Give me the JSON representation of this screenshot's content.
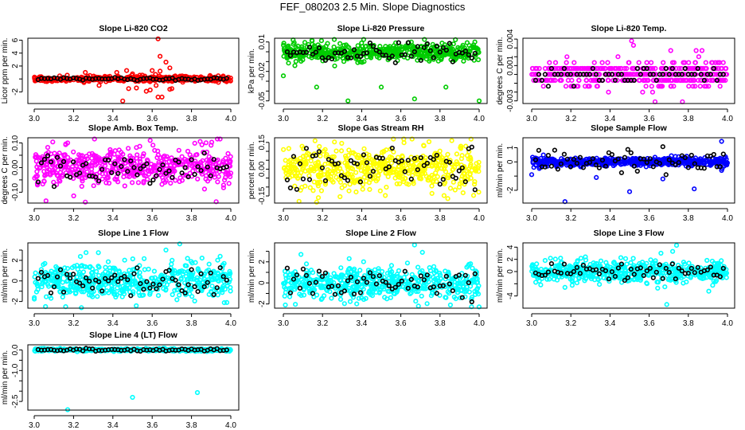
{
  "title": "FEF_080203  2.5 Min. Slope Diagnostics",
  "chart_data": [
    {
      "type": "scatter",
      "title": "Slope Li-820 CO2",
      "ylabel": "Licor ppm per min.",
      "color": "#ff0000",
      "xlim": [
        3.0,
        4.0
      ],
      "ylim": [
        -3.8,
        6.3
      ],
      "xticks": [
        3.0,
        3.2,
        3.4,
        3.6,
        3.8,
        4.0
      ],
      "yticks": [
        -2,
        0,
        2,
        4,
        6
      ],
      "ytick_labels": [
        "-2",
        "",
        "2",
        "4",
        "6"
      ],
      "bulk": {
        "n": 420,
        "center": 0,
        "sd": 0.22
      },
      "outliers": [
        [
          3.63,
          6.2
        ],
        [
          3.64,
          3.5
        ],
        [
          3.67,
          2.6
        ],
        [
          3.69,
          1.7
        ],
        [
          3.6,
          1.3
        ],
        [
          3.64,
          1.2
        ],
        [
          3.26,
          1.0
        ],
        [
          3.47,
          1.3
        ],
        [
          3.42,
          1.0
        ],
        [
          3.45,
          -3.4
        ],
        [
          3.63,
          -2.8
        ],
        [
          3.65,
          -2.8
        ],
        [
          3.57,
          -1.9
        ],
        [
          3.59,
          -1.7
        ],
        [
          3.69,
          -1.6
        ],
        [
          3.7,
          -1.5
        ],
        [
          3.48,
          -1.5
        ],
        [
          3.52,
          -1.4
        ],
        [
          3.33,
          -1.0
        ],
        [
          3.62,
          -1.0
        ],
        [
          3.55,
          0.6
        ],
        [
          3.5,
          0.8
        ]
      ],
      "reference": {
        "n": 60,
        "sd": 0.1
      }
    },
    {
      "type": "scatter",
      "title": "Slope Li-820 Pressure",
      "ylabel": "kPa per min.",
      "color": "#00cc00",
      "xlim": [
        3.0,
        4.0
      ],
      "ylim": [
        -0.0527,
        0.0138
      ],
      "xticks": [
        3.0,
        3.2,
        3.4,
        3.6,
        3.8,
        4.0
      ],
      "yticks": [
        0.01,
        0,
        -0.01,
        -0.02,
        -0.03,
        -0.04,
        -0.05
      ],
      "ytick_labels": [
        "0.01",
        "",
        "",
        "-0.02",
        "",
        "",
        "-0.05"
      ],
      "bulk": {
        "n": 520,
        "center": -0.0005,
        "sd": 0.0045
      },
      "outliers": [
        [
          3.17,
          -0.036
        ],
        [
          3.5,
          -0.036
        ],
        [
          3.83,
          -0.036
        ],
        [
          3.33,
          -0.05
        ],
        [
          3.67,
          -0.048
        ],
        [
          4.0,
          -0.05
        ],
        [
          3.0,
          -0.0245
        ],
        [
          3.26,
          0.0125
        ],
        [
          3.41,
          0.0125
        ],
        [
          3.05,
          0.012
        ]
      ],
      "reference": {
        "n": 60,
        "sd": 0.005
      }
    },
    {
      "type": "scatter",
      "title": "Slope Li-820 Temp.",
      "ylabel": "degrees C per min.",
      "color": "#ff00ff",
      "xlim": [
        3.0,
        4.0
      ],
      "ylim": [
        -0.0033,
        0.0041
      ],
      "xticks": [
        3.0,
        3.2,
        3.4,
        3.6,
        3.8,
        4.0
      ],
      "yticks": [
        0.004,
        0.003,
        0.002,
        0.001,
        0,
        -0.001,
        -0.002,
        -0.003
      ],
      "ytick_labels": [
        "0.004",
        "",
        "",
        "0.001",
        "",
        "",
        "",
        "-0.003"
      ],
      "bulk": {
        "n": 480,
        "center": 0,
        "sd": 0.0007,
        "step": 0.00067
      },
      "outliers": [
        [
          3.51,
          0.0038
        ],
        [
          3.52,
          0.0033
        ],
        [
          3.77,
          -0.0031
        ],
        [
          3.63,
          -0.0031
        ],
        [
          3.18,
          0.002
        ],
        [
          3.87,
          0.0027
        ],
        [
          3.84,
          0.0027
        ],
        [
          3.71,
          0.0027
        ]
      ],
      "reference": {
        "n": 60,
        "sd": 0.0005,
        "step": 0.00067
      }
    },
    {
      "type": "scatter",
      "title": "Slope Amb. Box Temp.",
      "ylabel": "degrees C per min.",
      "color": "#ff00ff",
      "xlim": [
        3.0,
        4.0
      ],
      "ylim": [
        -0.144,
        0.121
      ],
      "xticks": [
        3.0,
        3.2,
        3.4,
        3.6,
        3.8,
        4.0
      ],
      "yticks": [
        0.1,
        0.05,
        0,
        -0.05,
        -0.1
      ],
      "ytick_labels": [
        "0.10",
        "",
        "0.00",
        "",
        "-0.10"
      ],
      "bulk": {
        "n": 520,
        "center": 0.005,
        "sd": 0.04
      },
      "outliers": [
        [
          3.06,
          -0.135
        ],
        [
          3.26,
          -0.14
        ],
        [
          3.59,
          0.11
        ],
        [
          3.17,
          0.1
        ],
        [
          3.16,
          0.093
        ]
      ],
      "reference": {
        "n": 60,
        "sd": 0.03
      }
    },
    {
      "type": "scatter",
      "title": "Slope Gas Stream RH",
      "ylabel": "percent per min.",
      "color": "#ffff00",
      "xlim": [
        3.0,
        4.0
      ],
      "ylim": [
        -0.19,
        0.176
      ],
      "xticks": [
        3.0,
        3.2,
        3.4,
        3.6,
        3.8,
        4.0
      ],
      "yticks": [
        0.15,
        0.1,
        0.05,
        0,
        -0.05,
        -0.1,
        -0.15
      ],
      "ytick_labels": [
        "0.15",
        "",
        "",
        "0.00",
        "",
        "",
        "-0.15"
      ],
      "bulk": {
        "n": 520,
        "center": 0.005,
        "sd": 0.06
      },
      "outliers": [
        [
          3.08,
          -0.18
        ],
        [
          3.17,
          -0.185
        ],
        [
          3.86,
          0.16
        ],
        [
          3.84,
          -0.165
        ]
      ],
      "reference": {
        "n": 60,
        "sd": 0.06
      }
    },
    {
      "type": "scatter",
      "title": "Slope Sample Flow",
      "ylabel": "ml/min per min.",
      "color": "#0000ff",
      "xlim": [
        3.0,
        4.0
      ],
      "ylim": [
        -2.9,
        1.7
      ],
      "xticks": [
        3.0,
        3.2,
        3.4,
        3.6,
        3.8,
        4.0
      ],
      "yticks": [
        1,
        0,
        -1,
        -2
      ],
      "ytick_labels": [
        "1",
        "0",
        "",
        "-2"
      ],
      "bulk": {
        "n": 520,
        "center": 0,
        "sd": 0.15
      },
      "outliers": [
        [
          3.0,
          -0.9
        ],
        [
          3.17,
          -2.8
        ],
        [
          3.33,
          -1.1
        ],
        [
          3.5,
          -2.1
        ],
        [
          3.67,
          -1.2
        ],
        [
          3.83,
          -1.9
        ],
        [
          3.97,
          1.45
        ],
        [
          3.97,
          -0.6
        ]
      ],
      "reference": {
        "n": 60,
        "sd": 0.4
      }
    },
    {
      "type": "scatter",
      "title": "Slope Line 1 Flow",
      "ylabel": "ml/min per min.",
      "color": "#00ffff",
      "xlim": [
        3.0,
        4.0
      ],
      "ylim": [
        -2.65,
        3.7
      ],
      "xticks": [
        3.0,
        3.2,
        3.4,
        3.6,
        3.8,
        4.0
      ],
      "yticks": [
        -2,
        -1,
        0,
        1,
        2,
        3
      ],
      "ytick_labels": [
        "-2",
        "",
        "0",
        "",
        "2",
        ""
      ],
      "bulk": {
        "n": 520,
        "center": 0,
        "sd": 0.85
      },
      "outliers": [
        [
          3.74,
          3.6
        ],
        [
          3.67,
          3.0
        ],
        [
          3.16,
          -2.5
        ],
        [
          3.24,
          -2.6
        ]
      ],
      "reference": {
        "n": 60,
        "sd": 0.6
      }
    },
    {
      "type": "scatter",
      "title": "Slope Line 2 Flow",
      "ylabel": "ml/min per min.",
      "color": "#00ffff",
      "xlim": [
        3.0,
        4.0
      ],
      "ylim": [
        -2.4,
        3.8
      ],
      "xticks": [
        3.0,
        3.2,
        3.4,
        3.6,
        3.8,
        4.0
      ],
      "yticks": [
        -2,
        -1,
        0,
        1,
        2,
        3
      ],
      "ytick_labels": [
        "-2",
        "",
        "0",
        "",
        "2",
        ""
      ],
      "bulk": {
        "n": 520,
        "center": 0,
        "sd": 0.8
      },
      "outliers": [
        [
          3.67,
          3.6
        ],
        [
          3.71,
          2.9
        ],
        [
          3.09,
          2.7
        ],
        [
          3.01,
          -2.1
        ],
        [
          3.69,
          -2.2
        ]
      ],
      "reference": {
        "n": 60,
        "sd": 0.7
      }
    },
    {
      "type": "scatter",
      "title": "Slope Line 3 Flow",
      "ylabel": "ml/min per min.",
      "color": "#00ffff",
      "xlim": [
        3.0,
        4.0
      ],
      "ylim": [
        -6.0,
        4.7
      ],
      "xticks": [
        3.0,
        3.2,
        3.4,
        3.6,
        3.8,
        4.0
      ],
      "yticks": [
        4,
        2,
        0,
        -2,
        -4
      ],
      "ytick_labels": [
        "4",
        "2",
        "0",
        "",
        "-4"
      ],
      "bulk": {
        "n": 520,
        "center": 0,
        "sd": 0.9
      },
      "outliers": [
        [
          3.74,
          4.3
        ],
        [
          3.72,
          3.3
        ],
        [
          3.66,
          3.0
        ],
        [
          3.69,
          -5.4
        ],
        [
          3.17,
          -2.6
        ],
        [
          3.68,
          -2.5
        ]
      ],
      "reference": {
        "n": 60,
        "sd": 0.8
      }
    },
    {
      "type": "scatter",
      "title": "Slope Line 4 (LT) Flow",
      "ylabel": "ml/min per min.",
      "color": "#00ffff",
      "xlim": [
        3.0,
        4.0
      ],
      "ylim": [
        -2.92,
        0.25
      ],
      "xticks": [
        3.0,
        3.2,
        3.4,
        3.6,
        3.8,
        4.0
      ],
      "yticks": [
        0,
        -0.5,
        -1,
        -1.5,
        -2,
        -2.5
      ],
      "ytick_labels": [
        "0.0",
        "",
        "-1.0",
        "",
        "",
        "-2.5"
      ],
      "bulk": {
        "n": 480,
        "center": 0,
        "sd": 0.03
      },
      "outliers": [
        [
          3.17,
          -2.9
        ],
        [
          3.5,
          -2.3
        ],
        [
          3.83,
          -2.07
        ]
      ],
      "reference": {
        "n": 60,
        "sd": 0.03
      }
    }
  ]
}
